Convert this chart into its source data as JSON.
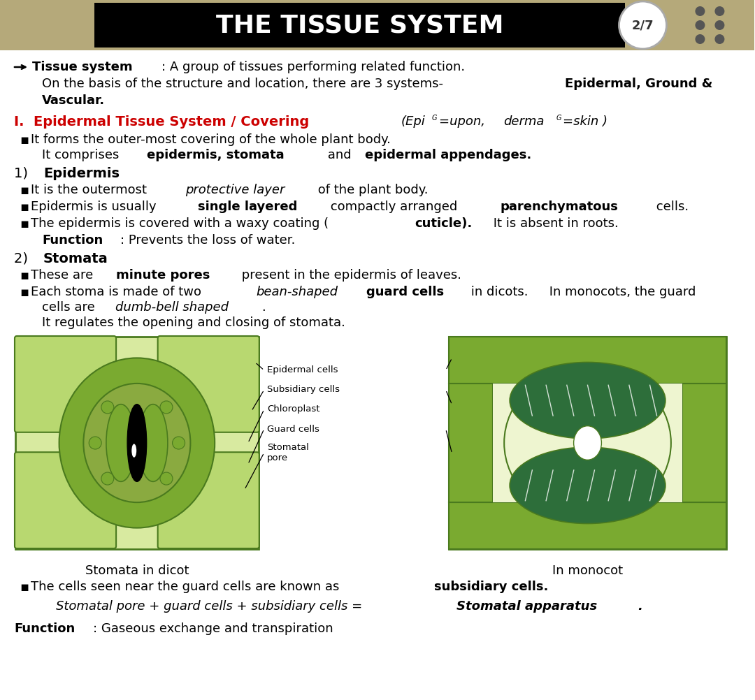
{
  "title": "THE TISSUE SYSTEM",
  "page_num": "2/7",
  "bg_color": "#ffffff",
  "header_bar_color": "#b5a97a",
  "header_bg": "#000000",
  "colors": {
    "dark_green": "#4a7a1e",
    "medium_green": "#7aaa30",
    "light_green": "#b8d870",
    "pale_green": "#d8eaa0",
    "olive_green": "#6b8c2a",
    "teal_green": "#2d6e3a",
    "very_light_green": "#eef5d0",
    "bg_green": "#c8dc8c"
  },
  "dicot_caption": "Stomata in dicot",
  "monocot_caption": "In monocot"
}
